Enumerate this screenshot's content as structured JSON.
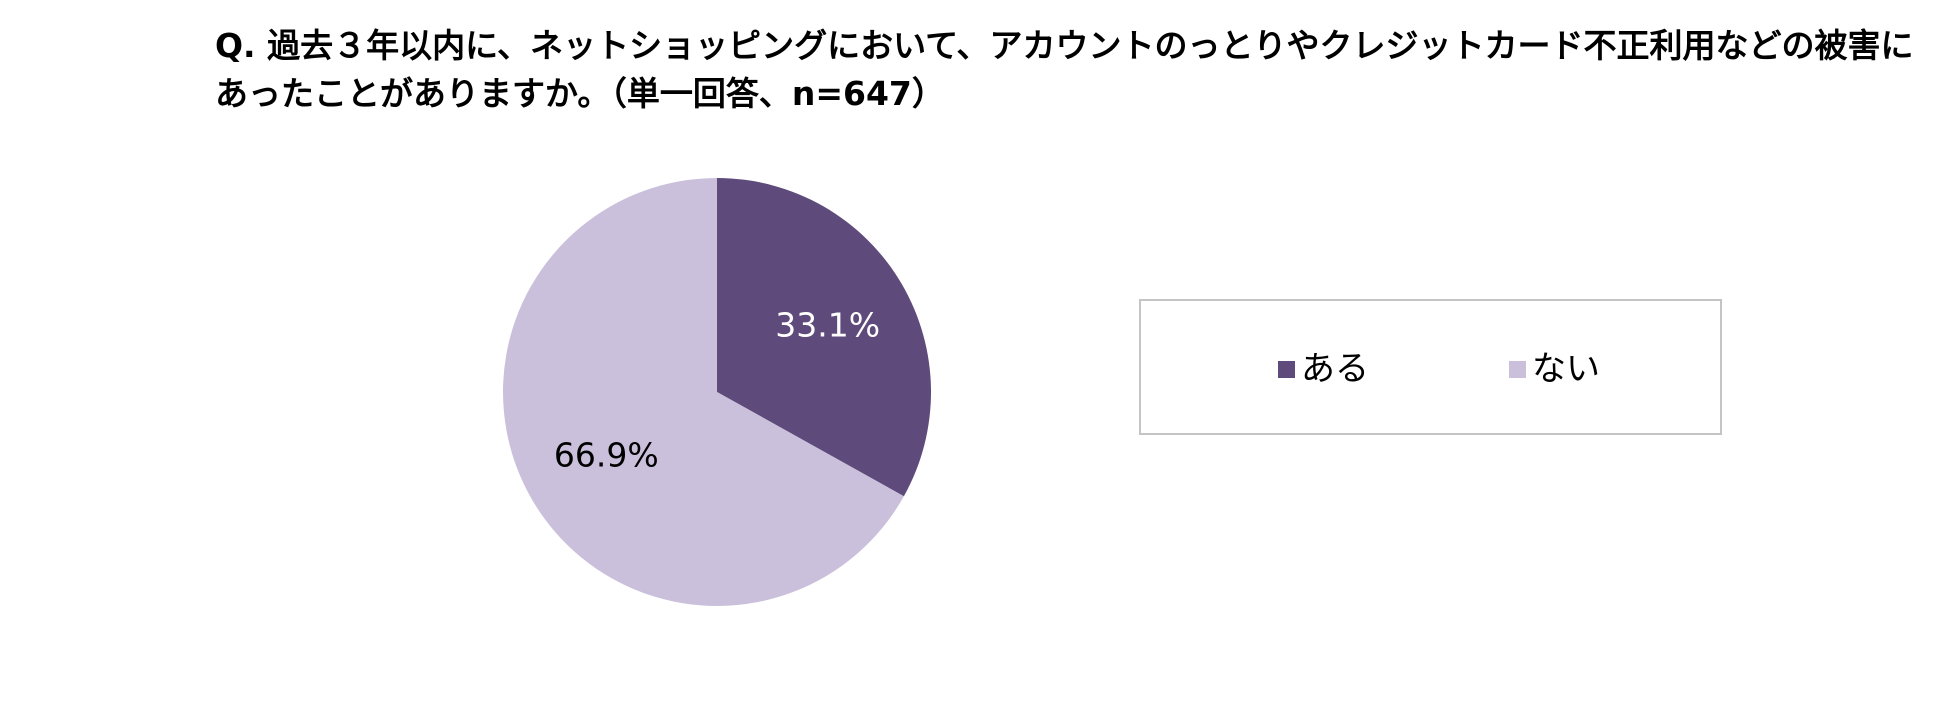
{
  "chart_data": {
    "type": "pie",
    "title": "Q. 過去３年以内に、ネットショッピングにおいて、アカウントのっとりやクレジットカード不正利用などの被害にあったことがありますか。（単一回答、n=647）",
    "slices": [
      {
        "name": "ある",
        "value": 33.1,
        "label": "33.1%",
        "color": "#5f4a7c",
        "label_color": "#ffffff"
      },
      {
        "name": "ない",
        "value": 66.9,
        "label": "66.9%",
        "color": "#cac0db",
        "label_color": "#000000"
      }
    ],
    "start": "12 o'clock",
    "direction": "clockwise",
    "legend": {
      "placement": "right",
      "bordered": true
    }
  }
}
